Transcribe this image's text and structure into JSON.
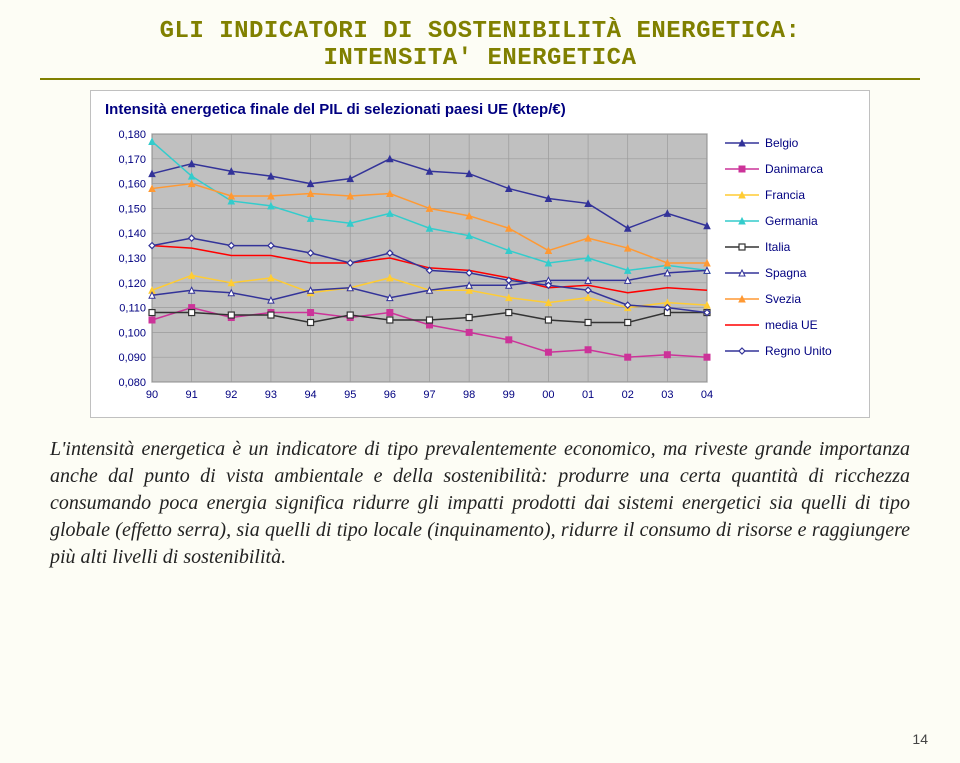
{
  "title": {
    "line1": "GLI INDICATORI DI SOSTENIBILITÀ ENERGETICA:",
    "line2": "INTENSITA' ENERGETICA"
  },
  "chart": {
    "type": "line",
    "title": "Intensità energetica finale del PIL di selezionati paesi UE (ktep/€)",
    "background_color": "#ffffff",
    "plot_bg_color": "#c0c0c0",
    "grid_color": "#9a9a9a",
    "axis_label_color": "#000080",
    "label_fontsize": 11,
    "x": {
      "labels": [
        "90",
        "91",
        "92",
        "93",
        "94",
        "95",
        "96",
        "97",
        "98",
        "99",
        "00",
        "01",
        "02",
        "03",
        "04"
      ],
      "tick_step": 1
    },
    "y": {
      "min": 0.08,
      "max": 0.18,
      "tick_step": 0.01,
      "labels": [
        "0,080",
        "0,090",
        "0,100",
        "0,110",
        "0,120",
        "0,130",
        "0,140",
        "0,150",
        "0,160",
        "0,170",
        "0,180"
      ]
    },
    "line_width": 1.5,
    "marker_size": 6,
    "series": [
      {
        "name": "Belgio",
        "label": "Belgio",
        "color": "#333399",
        "marker": "triangle",
        "fill": "#333399",
        "values": [
          0.164,
          0.168,
          0.165,
          0.163,
          0.16,
          0.162,
          0.17,
          0.165,
          0.164,
          0.158,
          0.154,
          0.152,
          0.142,
          0.148,
          0.143
        ]
      },
      {
        "name": "Danimarca",
        "label": "Danimarca",
        "color": "#cc3399",
        "marker": "square",
        "fill": "#cc3399",
        "values": [
          0.105,
          0.11,
          0.106,
          0.108,
          0.108,
          0.106,
          0.108,
          0.103,
          0.1,
          0.097,
          0.092,
          0.093,
          0.09,
          0.091,
          0.09
        ]
      },
      {
        "name": "Francia",
        "label": "Francia",
        "color": "#ffcc33",
        "marker": "triangle",
        "fill": "#ffcc33",
        "values": [
          0.117,
          0.123,
          0.12,
          0.122,
          0.116,
          0.118,
          0.122,
          0.117,
          0.117,
          0.114,
          0.112,
          0.114,
          0.11,
          0.112,
          0.111
        ]
      },
      {
        "name": "Germania",
        "label": "Germania",
        "color": "#33cccc",
        "marker": "triangle",
        "fill": "#33cccc",
        "values": [
          0.177,
          0.163,
          0.153,
          0.151,
          0.146,
          0.144,
          0.148,
          0.142,
          0.139,
          0.133,
          0.128,
          0.13,
          0.125,
          0.127,
          0.125
        ]
      },
      {
        "name": "Italia",
        "label": "Italia",
        "color": "#333333",
        "marker": "square-open",
        "fill": "#ffffff",
        "values": [
          0.108,
          0.108,
          0.107,
          0.107,
          0.104,
          0.107,
          0.105,
          0.105,
          0.106,
          0.108,
          0.105,
          0.104,
          0.104,
          0.108,
          0.108
        ]
      },
      {
        "name": "Spagna",
        "label": "Spagna",
        "color": "#333399",
        "marker": "triangle",
        "fill": "#ffffff",
        "values": [
          0.115,
          0.117,
          0.116,
          0.113,
          0.117,
          0.118,
          0.114,
          0.117,
          0.119,
          0.119,
          0.121,
          0.121,
          0.121,
          0.124,
          0.125
        ]
      },
      {
        "name": "Svezia",
        "label": "Svezia",
        "color": "#ff9933",
        "marker": "triangle",
        "fill": "#ff9933",
        "values": [
          0.158,
          0.16,
          0.155,
          0.155,
          0.156,
          0.155,
          0.156,
          0.15,
          0.147,
          0.142,
          0.133,
          0.138,
          0.134,
          0.128,
          0.128
        ]
      },
      {
        "name": "media UE",
        "label": "media UE",
        "color": "#ff0000",
        "marker": "none",
        "fill": "none",
        "values": [
          0.135,
          0.134,
          0.131,
          0.131,
          0.128,
          0.128,
          0.13,
          0.126,
          0.125,
          0.122,
          0.118,
          0.119,
          0.116,
          0.118,
          0.117
        ]
      },
      {
        "name": "Regno Unito",
        "label": "Regno Unito",
        "color": "#333399",
        "marker": "diamond-open",
        "fill": "#ffffff",
        "values": [
          0.135,
          0.138,
          0.135,
          0.135,
          0.132,
          0.128,
          0.132,
          0.125,
          0.124,
          0.121,
          0.119,
          0.117,
          0.111,
          0.11,
          0.108
        ]
      }
    ],
    "legend": {
      "position": "right",
      "fontsize": 12,
      "text_color": "#000080"
    }
  },
  "paragraph": "L'intensità energetica è un indicatore di tipo prevalentemente economico, ma riveste grande importanza anche dal punto di vista ambientale e della sostenibilità: produrre una certa quantità di ricchezza consumando poca energia significa ridurre gli impatti prodotti dai sistemi energetici sia quelli di tipo globale (effetto serra), sia quelli di tipo locale (inquinamento), ridurre il consumo di risorse e raggiungere più alti livelli di sostenibilità.",
  "page_number": "14"
}
